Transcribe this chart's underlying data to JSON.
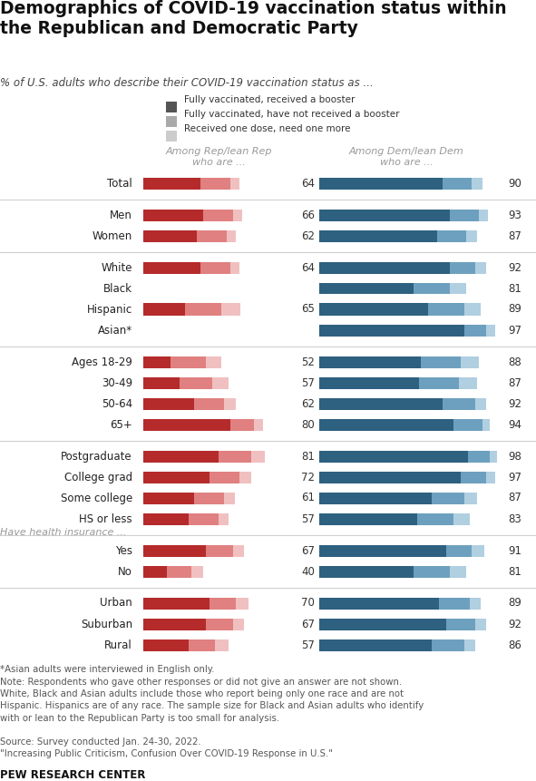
{
  "title": "Demographics of COVID-19 vaccination status within\nthe Republican and Democratic Party",
  "subtitle": "% of U.S. adults who describe their COVID-19 vaccination status as ...",
  "legend_labels": [
    "Fully vaccinated, received a booster",
    "Fully vaccinated, have not received a booster",
    "Received one dose, need one more"
  ],
  "legend_colors": [
    "#555555",
    "#aaaaaa",
    "#cccccc"
  ],
  "rep_colors": [
    "#b52b2b",
    "#e08080",
    "#f0c0c0"
  ],
  "dem_colors": [
    "#2e6080",
    "#6da0be",
    "#b0cfe0"
  ],
  "col_header_rep": "Among Rep/lean Rep\nwho are ...",
  "col_header_dem": "Among Dem/lean Dem\nwho are ...",
  "categories": [
    "Total",
    "Men",
    "Women",
    "White",
    "Black",
    "Hispanic",
    "Asian*",
    "Ages 18-29",
    "30-49",
    "50-64",
    "65+",
    "Postgraduate",
    "College grad",
    "Some college",
    "HS or less",
    "Yes",
    "No",
    "Urban",
    "Suburban",
    "Rural"
  ],
  "insurance_label": "Have health insurance ...",
  "insurance_label_idx": 15,
  "groups": [
    [
      0
    ],
    [
      1,
      2
    ],
    [
      3,
      4,
      5,
      6
    ],
    [
      7,
      8,
      9,
      10
    ],
    [
      11,
      12,
      13,
      14
    ],
    [
      15,
      16
    ],
    [
      17,
      18,
      19
    ]
  ],
  "rep_data": [
    [
      38,
      20,
      6
    ],
    [
      40,
      20,
      6
    ],
    [
      36,
      20,
      6
    ],
    [
      38,
      20,
      6
    ],
    [
      0,
      0,
      0
    ],
    [
      28,
      24,
      13
    ],
    [
      0,
      0,
      0
    ],
    [
      18,
      24,
      10
    ],
    [
      24,
      22,
      11
    ],
    [
      34,
      20,
      8
    ],
    [
      58,
      16,
      6
    ],
    [
      50,
      22,
      9
    ],
    [
      44,
      20,
      8
    ],
    [
      34,
      20,
      7
    ],
    [
      30,
      20,
      7
    ],
    [
      42,
      18,
      7
    ],
    [
      16,
      16,
      8
    ],
    [
      44,
      18,
      8
    ],
    [
      42,
      18,
      7
    ],
    [
      30,
      18,
      9
    ]
  ],
  "dem_data": [
    [
      68,
      16,
      6
    ],
    [
      72,
      16,
      5
    ],
    [
      65,
      16,
      6
    ],
    [
      72,
      14,
      6
    ],
    [
      52,
      20,
      9
    ],
    [
      60,
      20,
      9
    ],
    [
      80,
      12,
      5
    ],
    [
      56,
      22,
      10
    ],
    [
      55,
      22,
      10
    ],
    [
      68,
      18,
      6
    ],
    [
      74,
      16,
      4
    ],
    [
      82,
      12,
      4
    ],
    [
      78,
      14,
      5
    ],
    [
      62,
      18,
      7
    ],
    [
      54,
      20,
      9
    ],
    [
      70,
      14,
      7
    ],
    [
      52,
      20,
      9
    ],
    [
      66,
      17,
      6
    ],
    [
      70,
      16,
      6
    ],
    [
      62,
      18,
      6
    ]
  ],
  "rep_totals": [
    64,
    66,
    62,
    64,
    null,
    65,
    null,
    52,
    57,
    62,
    80,
    81,
    72,
    61,
    57,
    67,
    40,
    70,
    67,
    57
  ],
  "dem_totals": [
    90,
    93,
    87,
    92,
    81,
    89,
    97,
    88,
    87,
    92,
    94,
    98,
    97,
    87,
    83,
    91,
    81,
    89,
    92,
    86
  ],
  "footnote1": "*Asian adults were interviewed in English only.",
  "footnote2": "Note: Respondents who gave other responses or did not give an answer are not shown.\nWhite, Black and Asian adults include those who report being only one race and are not\nHispanic. Hispanics are of any race. The sample size for Black and Asian adults who identify\nwith or lean to the Republican Party is too small for analysis.",
  "footnote3": "Source: Survey conducted Jan. 24-30, 2022.\n\"Increasing Public Criticism, Confusion Over COVID-19 Response in U.S.\"",
  "source": "PEW RESEARCH CENTER"
}
